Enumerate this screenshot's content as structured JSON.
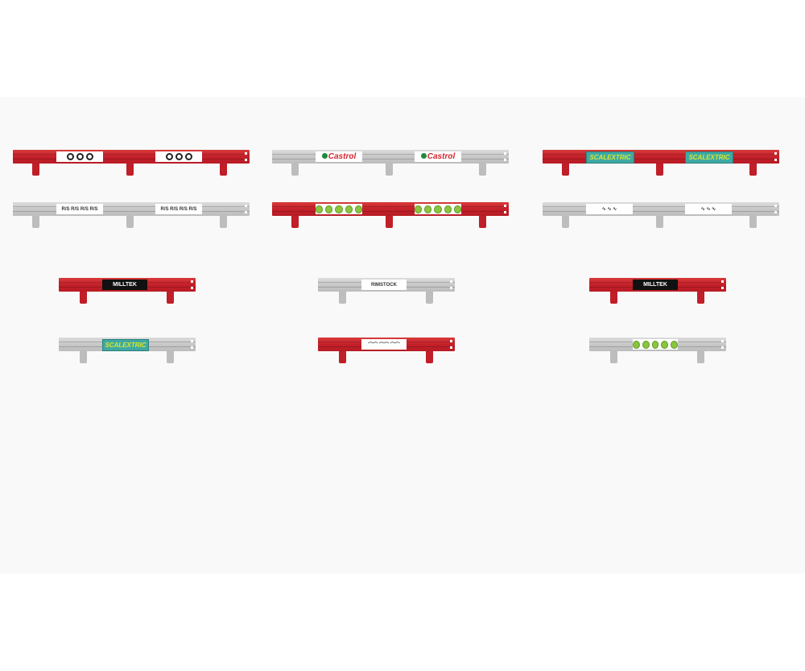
{
  "barriers": [
    {
      "id": "long-red-rings",
      "color": "red",
      "size": "long",
      "logo": "rings",
      "logo_text": ""
    },
    {
      "id": "long-grey-castrol",
      "color": "grey",
      "size": "long",
      "logo": "castrol",
      "logo_text": "Castrol"
    },
    {
      "id": "long-red-scalextric",
      "color": "red",
      "size": "long",
      "logo": "teal",
      "logo_text": "SCALEXTRIC"
    },
    {
      "id": "long-grey-text",
      "color": "grey",
      "size": "long",
      "logo": "text",
      "logo_text": "R/S R/S R/S R/S"
    },
    {
      "id": "long-red-green-dots",
      "color": "red",
      "size": "long",
      "logo": "dots",
      "logo_text": ""
    },
    {
      "id": "long-grey-figures",
      "color": "grey",
      "size": "long",
      "logo": "text",
      "logo_text": "∿ ∿ ∿"
    },
    {
      "id": "short-red-milltek",
      "color": "red",
      "size": "short",
      "logo": "black",
      "logo_text": "MILLTEK"
    },
    {
      "id": "short-grey-rimstock",
      "color": "grey",
      "size": "short",
      "logo": "rim",
      "logo_text": "RIMSTOCK"
    },
    {
      "id": "short-red-milltek-2",
      "color": "red",
      "size": "short",
      "logo": "black",
      "logo_text": "MILLTEK"
    },
    {
      "id": "short-grey-scalextric",
      "color": "grey",
      "size": "short",
      "logo": "teal",
      "logo_text": "SCALEXTRIC"
    },
    {
      "id": "short-red-cars",
      "color": "red",
      "size": "short",
      "logo": "text",
      "logo_text": "⌒⌒ ⌒⌒ ⌒⌒"
    },
    {
      "id": "short-grey-green-dots",
      "color": "grey",
      "size": "short",
      "logo": "dots",
      "logo_text": ""
    }
  ],
  "colors": {
    "red": "#c4202a",
    "grey": "#c8c8c8",
    "green": "#8bc43f"
  }
}
